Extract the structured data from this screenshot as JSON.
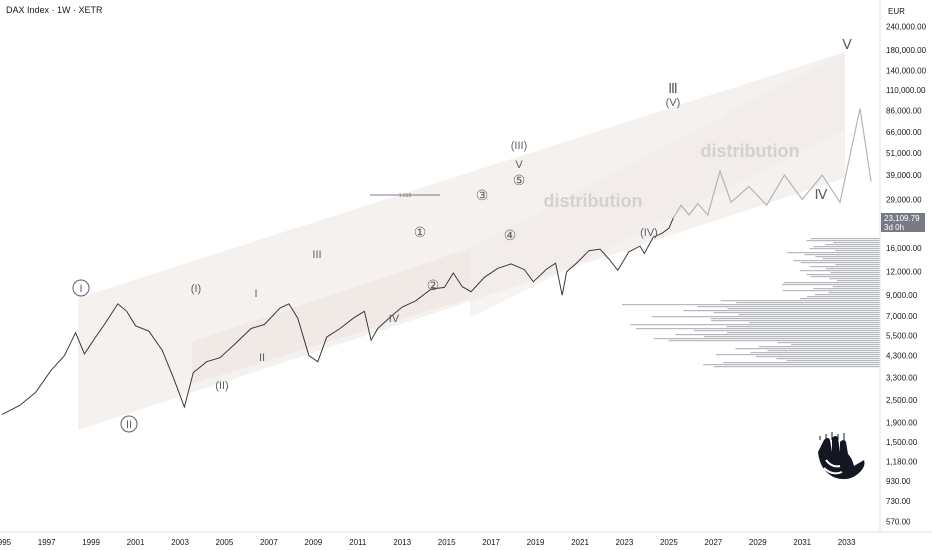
{
  "header": {
    "title": "DAX Index · 1W · XETR"
  },
  "currency": "EUR",
  "last_price": {
    "value": "23,109.79",
    "countdown": "3d 0h"
  },
  "colors": {
    "price_line": "#3a3a3a",
    "projection": "#b2b5be",
    "channel_fill": "#f3eeea",
    "label": "#5d606b",
    "volume_profile": "#a5a8b0"
  },
  "logo_icon": "shaka-hand-logo",
  "chart_data": {
    "type": "line",
    "title": "DAX Index · 1W · XETR",
    "yscale": "log",
    "ylim": [
      500,
      300000
    ],
    "xlim": [
      1994.9,
      2034.5
    ],
    "x_ticks": [
      "1995",
      "1997",
      "1999",
      "2001",
      "2003",
      "2005",
      "2007",
      "2009",
      "2011",
      "2013",
      "2015",
      "2017",
      "2019",
      "2021",
      "2023",
      "2025",
      "2027",
      "2029",
      "2031",
      "2033"
    ],
    "y_ticks": [
      "240,000.00",
      "180,000.00",
      "140,000.00",
      "110,000.00",
      "86,000.00",
      "66,000.00",
      "51,000.00",
      "39,000.00",
      "29,000.00",
      "23,109.79",
      "16,000.00",
      "12,000.00",
      "9,000.00",
      "7,000.00",
      "5,500.00",
      "4,300.00",
      "3,300.00",
      "2,500.00",
      "1,900.00",
      "1,500.00",
      "1,180.00",
      "930.00",
      "730.00",
      "570.00"
    ],
    "series": [
      {
        "x": [
          1995.0,
          1995.8,
          1996.5,
          1997.2,
          1997.8,
          1998.3,
          1998.7,
          1999.2,
          1999.6,
          2000.2,
          2000.6,
          2001.0,
          2001.6,
          2002.2,
          2002.7,
          2003.2,
          2003.6,
          2004.2,
          2004.8,
          2005.5,
          2006.2,
          2006.8,
          2007.5,
          2007.9,
          2008.3,
          2008.8,
          2009.2,
          2009.6,
          2010.2,
          2010.8,
          2011.3,
          2011.6,
          2011.9,
          2012.4,
          2013.0,
          2013.6,
          2014.3,
          2014.9,
          2015.3,
          2015.7,
          2016.1,
          2016.7,
          2017.3,
          2017.9,
          2018.5,
          2018.9,
          2019.5,
          2019.9,
          2020.2,
          2020.4,
          2020.9,
          2021.4,
          2021.9,
          2022.3,
          2022.7,
          2023.2,
          2023.7,
          2023.9,
          2024.3,
          2024.7,
          2025.0,
          2025.2
        ],
        "y": [
          2100,
          2350,
          2750,
          3600,
          4300,
          5700,
          4400,
          5400,
          6300,
          8100,
          7400,
          6200,
          5800,
          4600,
          3300,
          2300,
          3500,
          4000,
          4200,
          5000,
          6000,
          6300,
          7700,
          8100,
          6800,
          4300,
          4000,
          5400,
          6000,
          6800,
          7400,
          5200,
          6000,
          6800,
          7800,
          8400,
          9700,
          9900,
          11800,
          10000,
          9400,
          11200,
          12500,
          13200,
          12300,
          10600,
          12400,
          13300,
          9000,
          12000,
          13500,
          15500,
          15800,
          14000,
          12200,
          15300,
          16400,
          15000,
          18300,
          19200,
          20400,
          23100
        ]
      },
      {
        "name": "projection",
        "x": [
          2025.2,
          2025.55,
          2025.9,
          2026.3,
          2026.75,
          2027.3,
          2027.8,
          2028.6,
          2029.4,
          2030.2,
          2031.0,
          2031.9,
          2032.7,
          2033.6,
          2034.1
        ],
        "y": [
          23100,
          27000,
          24000,
          27500,
          24000,
          41000,
          28000,
          34000,
          27000,
          39000,
          29000,
          39000,
          28000,
          88000,
          36000
        ]
      }
    ]
  },
  "annotations": {
    "fib_level": "1.618",
    "wave_labels": [
      "I",
      "II",
      "(I)",
      "(II)",
      "I",
      "II",
      "III",
      "IV",
      "①",
      "②",
      "③",
      "④",
      "⑤",
      "V",
      "(III)",
      "Ⅲ",
      "(V)",
      "(IV)",
      "Ⅳ",
      "Ⅴ"
    ],
    "distribution_1": "distribution",
    "distribution_2": "distribution"
  }
}
